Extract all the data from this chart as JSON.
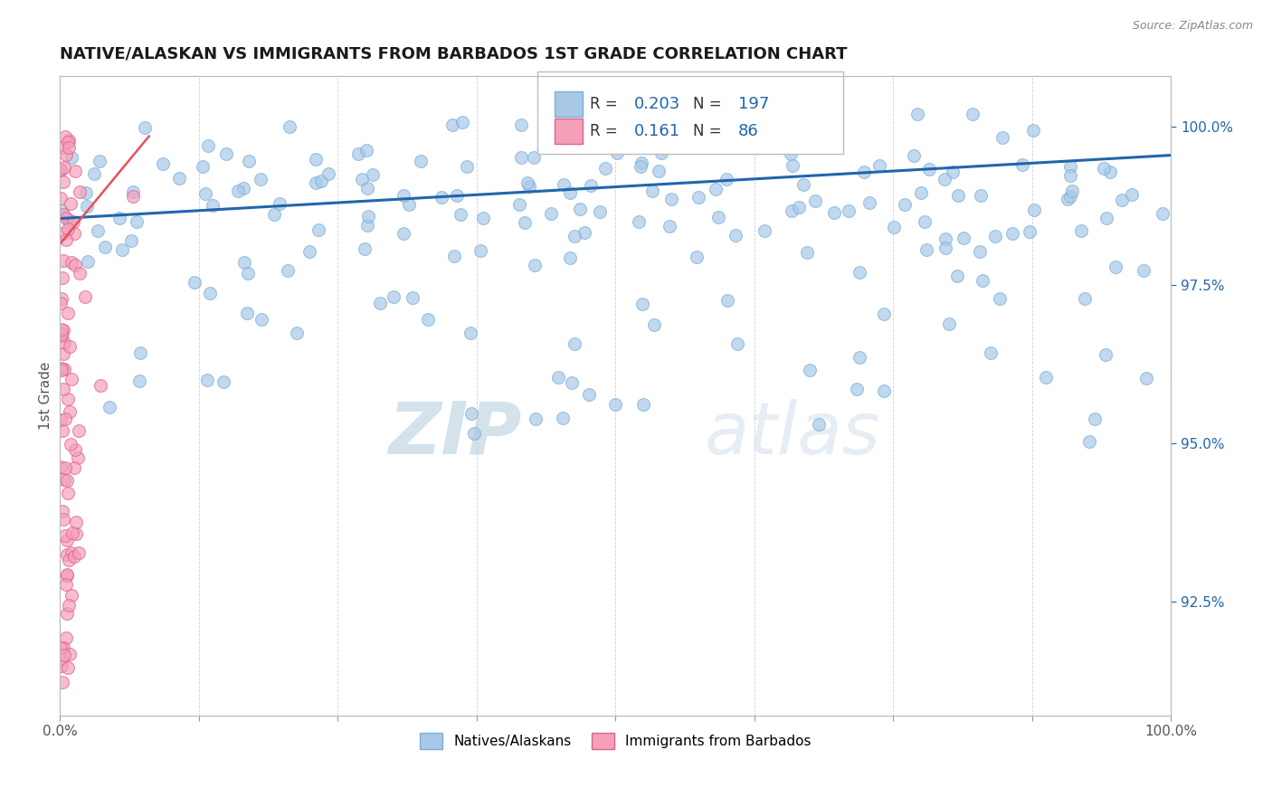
{
  "title": "NATIVE/ALASKAN VS IMMIGRANTS FROM BARBADOS 1ST GRADE CORRELATION CHART",
  "source": "Source: ZipAtlas.com",
  "ylabel": "1st Grade",
  "x_min": 0.0,
  "x_max": 1.0,
  "y_min": 0.907,
  "y_max": 1.008,
  "right_yticks": [
    1.0,
    0.975,
    0.95,
    0.925
  ],
  "right_yticklabels": [
    "100.0%",
    "97.5%",
    "95.0%",
    "92.5%"
  ],
  "blue_color": "#a8c8e8",
  "blue_edge_color": "#7aafd4",
  "pink_color": "#f4a0b8",
  "pink_edge_color": "#e06090",
  "blue_line_color": "#2166ac",
  "pink_line_color": "#e8505a",
  "title_fontsize": 13,
  "dot_size": 100,
  "blue_trend_x": [
    0.0,
    1.0
  ],
  "blue_trend_y": [
    0.9855,
    0.9955
  ],
  "pink_trend_x": [
    0.0,
    0.08
  ],
  "pink_trend_y": [
    0.9815,
    0.9985
  ],
  "watermark_zip": "ZIP",
  "watermark_atlas": "atlas",
  "background_color": "#ffffff",
  "grid_color": "#cccccc",
  "legend_r_blue_val": "0.203",
  "legend_n_blue_val": "197",
  "legend_r_pink_val": "0.161",
  "legend_n_pink_val": "86"
}
